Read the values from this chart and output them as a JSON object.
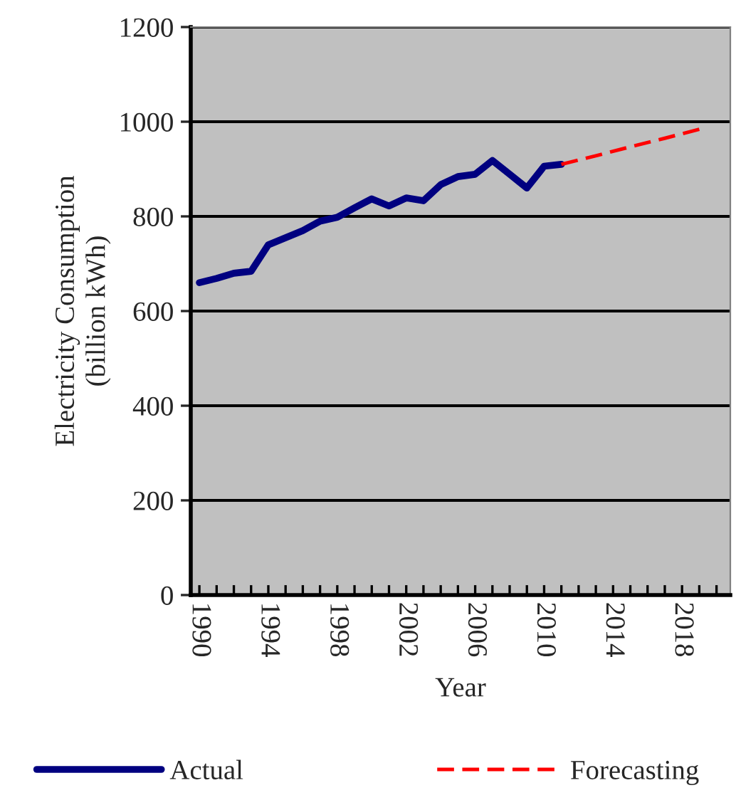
{
  "chart_data": {
    "type": "line",
    "xlabel": "Year",
    "ylabel": "Electricity Consumption\n(billion kWh)",
    "xlim": [
      1989.5,
      2020.8
    ],
    "ylim": [
      0,
      1200
    ],
    "yticks": [
      0,
      200,
      400,
      600,
      800,
      1000,
      1200
    ],
    "xticks": [
      1990,
      {
        "value": 1991,
        "label": null
      },
      {
        "value": 1992,
        "label": null
      },
      {
        "value": 1993,
        "label": null
      },
      1994,
      {
        "value": 1995,
        "label": null
      },
      {
        "value": 1996,
        "label": null
      },
      {
        "value": 1997,
        "label": null
      },
      1998,
      {
        "value": 1999,
        "label": null
      },
      {
        "value": 2000,
        "label": null
      },
      {
        "value": 2001,
        "label": null
      },
      2002,
      {
        "value": 2003,
        "label": null
      },
      {
        "value": 2004,
        "label": null
      },
      {
        "value": 2005,
        "label": null
      },
      2006,
      {
        "value": 2007,
        "label": null
      },
      {
        "value": 2008,
        "label": null
      },
      {
        "value": 2009,
        "label": null
      },
      2010,
      {
        "value": 2011,
        "label": null
      },
      {
        "value": 2012,
        "label": null
      },
      {
        "value": 2013,
        "label": null
      },
      2014,
      {
        "value": 2015,
        "label": null
      },
      {
        "value": 2016,
        "label": null
      },
      {
        "value": 2017,
        "label": null
      },
      2018,
      {
        "value": 2019,
        "label": null
      },
      {
        "value": 2020,
        "label": null
      }
    ],
    "grid": "y",
    "legend": "bottom",
    "series": [
      {
        "name": "Actual",
        "color": "#000080",
        "line_style": "solid",
        "x": [
          1990,
          1991,
          1992,
          1993,
          1994,
          1995,
          1996,
          1997,
          1998,
          1999,
          2000,
          2001,
          2002,
          2003,
          2004,
          2005,
          2006,
          2007,
          2008,
          2009,
          2010,
          2011
        ],
        "values": [
          660,
          669,
          680,
          684,
          740,
          755,
          770,
          790,
          798,
          818,
          837,
          822,
          839,
          833,
          867,
          884,
          889,
          918,
          889,
          860,
          906,
          910
        ]
      },
      {
        "name": "Forecasting",
        "color": "#ff0000",
        "line_style": "dashed",
        "x": [
          2011,
          2013,
          2015,
          2017,
          2019
        ],
        "values": [
          910,
          928,
          947,
          965,
          984
        ]
      }
    ]
  }
}
